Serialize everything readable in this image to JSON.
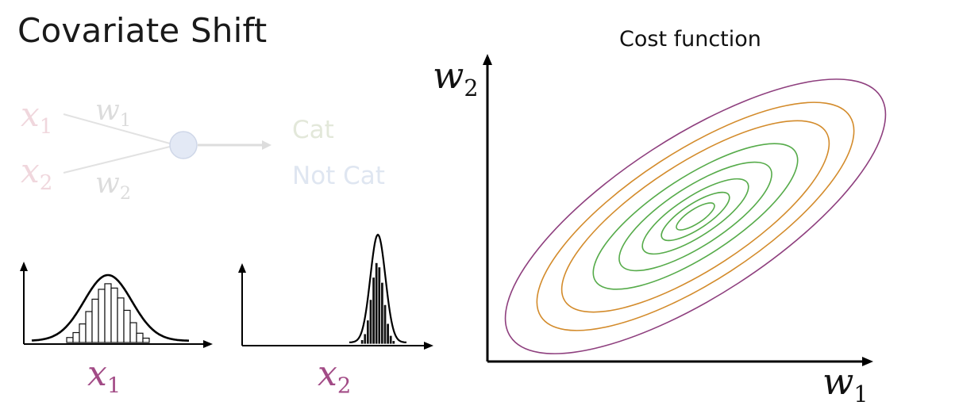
{
  "slide": {
    "title": "Covariate Shift"
  },
  "network": {
    "input1": {
      "var": "x",
      "sub": "1"
    },
    "input2": {
      "var": "x",
      "sub": "2"
    },
    "weight1": {
      "var": "w",
      "sub": "1"
    },
    "weight2": {
      "var": "w",
      "sub": "2"
    },
    "output_top": "Cat",
    "output_bottom": "Not Cat",
    "colors": {
      "input": "#f0d7dd",
      "weight": "#dcdcdc",
      "neuron_fill": "#e3e9f5",
      "cat": "#e3e8da",
      "notcat": "#dfe6f1"
    }
  },
  "histograms": {
    "x1_label": {
      "var": "x",
      "sub": "1"
    },
    "x2_label": {
      "var": "x",
      "sub": "2"
    },
    "x1_bars": [
      0.08,
      0.16,
      0.3,
      0.5,
      0.7,
      0.86,
      0.95,
      0.88,
      0.72,
      0.52,
      0.32,
      0.15,
      0.07
    ],
    "x2_bars": [
      0.05,
      0.12,
      0.28,
      0.52,
      0.78,
      0.95,
      0.9,
      0.72,
      0.46,
      0.24,
      0.1,
      0.04
    ],
    "label_color": "#a24b86"
  },
  "cost_function": {
    "title": "Cost function",
    "xlabel": {
      "var": "w",
      "sub": "1"
    },
    "ylabel": {
      "var": "w",
      "sub": "2"
    },
    "contour_colors": {
      "outer": "#8e3f7e",
      "middle": "#d38b2b",
      "inner": "#56ab4a"
    }
  }
}
